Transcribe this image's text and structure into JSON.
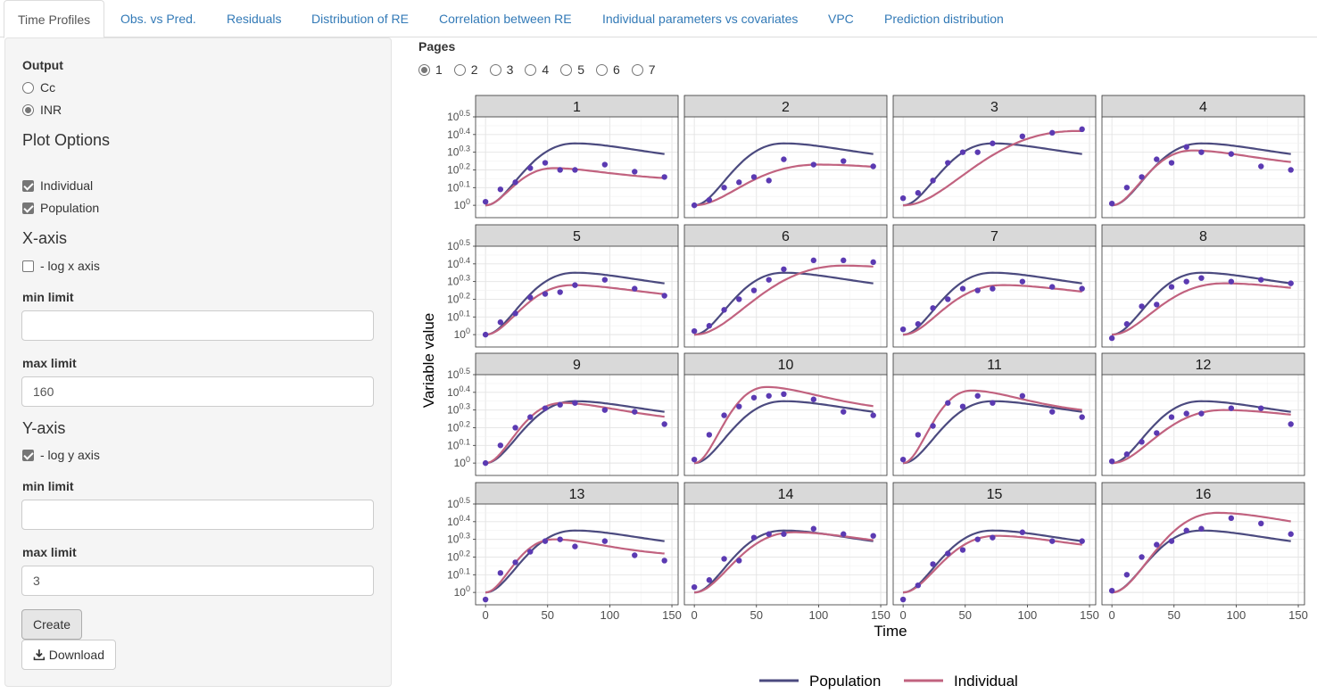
{
  "tabs": [
    {
      "label": "Time Profiles",
      "active": true
    },
    {
      "label": "Obs. vs Pred.",
      "active": false
    },
    {
      "label": "Residuals",
      "active": false
    },
    {
      "label": "Distribution of RE",
      "active": false
    },
    {
      "label": "Correlation between RE",
      "active": false
    },
    {
      "label": "Individual parameters vs covariates",
      "active": false
    },
    {
      "label": "VPC",
      "active": false
    },
    {
      "label": "Prediction distribution",
      "active": false
    }
  ],
  "sidebar": {
    "output_label": "Output",
    "output_options": [
      {
        "label": "Cc",
        "checked": false
      },
      {
        "label": "INR",
        "checked": true
      }
    ],
    "plot_options_label": "Plot Options",
    "plot_checks": [
      {
        "label": "Individual",
        "checked": true
      },
      {
        "label": "Population",
        "checked": true
      }
    ],
    "xaxis_label": "X-axis",
    "xaxis_log_label": "- log x axis",
    "xaxis_log_checked": false,
    "x_min_label": "min limit",
    "x_min_value": "",
    "x_max_label": "max limit",
    "x_max_value": "160",
    "yaxis_label": "Y-axis",
    "yaxis_log_label": "- log y axis",
    "yaxis_log_checked": true,
    "y_min_label": "min limit",
    "y_min_value": "",
    "y_max_label": "max limit",
    "y_max_value": "3",
    "create_label": "Create",
    "download_label": "Download"
  },
  "pages": {
    "label": "Pages",
    "options": [
      "1",
      "2",
      "3",
      "4",
      "5",
      "6",
      "7"
    ],
    "selected": "1"
  },
  "colors": {
    "population": "#4b4a7f",
    "individual": "#c1627f",
    "observation": "#5b3ab2",
    "strip": "#d9d9d9"
  },
  "chart_data": {
    "type": "line",
    "xlabel": "Time",
    "ylabel": "Variable value",
    "xlim": [
      -8,
      155
    ],
    "x_ticks": [
      "0",
      "50",
      "100",
      "150"
    ],
    "x_tick_values": [
      0,
      50,
      100,
      150
    ],
    "y_scale": "log10",
    "ylim_exponent": [
      -0.07,
      0.5
    ],
    "y_tick_base": "10",
    "y_tick_exponents": [
      "0",
      "0.1",
      "0.2",
      "0.3",
      "0.4",
      "0.5"
    ],
    "y_tick_exponent_values": [
      0,
      0.1,
      0.2,
      0.3,
      0.4,
      0.5
    ],
    "legend": {
      "placement": "bottom",
      "entries": [
        "Population",
        "Individual"
      ]
    },
    "obs_times": [
      0,
      12,
      24,
      36,
      48,
      60,
      72,
      96,
      120,
      144
    ],
    "panels": [
      {
        "id": "1",
        "pop": [
          0,
          0.35,
          72
        ],
        "ind": [
          0,
          0.21,
          55
        ],
        "obs": [
          0.02,
          0.09,
          0.13,
          0.21,
          0.24,
          0.2,
          0.2,
          0.23,
          0.19,
          0.16
        ]
      },
      {
        "id": "2",
        "pop": [
          0,
          0.35,
          72
        ],
        "ind": [
          0,
          0.23,
          100
        ],
        "obs": [
          0,
          0.03,
          0.1,
          0.13,
          0.16,
          0.14,
          0.26,
          0.23,
          0.25,
          0.22
        ]
      },
      {
        "id": "3",
        "pop": [
          0,
          0.35,
          72
        ],
        "ind": [
          0,
          0.42,
          140
        ],
        "obs": [
          0.04,
          0.07,
          0.14,
          0.24,
          0.3,
          0.3,
          0.35,
          0.39,
          0.41,
          0.43
        ]
      },
      {
        "id": "4",
        "pop": [
          0,
          0.35,
          72
        ],
        "ind": [
          0,
          0.31,
          65
        ],
        "obs": [
          0.01,
          0.1,
          0.16,
          0.26,
          0.24,
          0.33,
          0.3,
          0.29,
          0.22,
          0.2
        ]
      },
      {
        "id": "5",
        "pop": [
          0,
          0.35,
          72
        ],
        "ind": [
          0,
          0.28,
          70
        ],
        "obs": [
          0,
          0.07,
          0.12,
          0.21,
          0.23,
          0.24,
          0.28,
          0.31,
          0.26,
          0.22
        ]
      },
      {
        "id": "6",
        "pop": [
          0,
          0.35,
          72
        ],
        "ind": [
          0,
          0.39,
          120
        ],
        "obs": [
          0.02,
          0.05,
          0.14,
          0.2,
          0.25,
          0.31,
          0.37,
          0.42,
          0.42,
          0.41
        ]
      },
      {
        "id": "7",
        "pop": [
          0,
          0.35,
          72
        ],
        "ind": [
          0,
          0.28,
          80
        ],
        "obs": [
          0.03,
          0.06,
          0.15,
          0.2,
          0.26,
          0.25,
          0.26,
          0.3,
          0.27,
          0.26
        ]
      },
      {
        "id": "8",
        "pop": [
          0,
          0.35,
          72
        ],
        "ind": [
          0,
          0.29,
          90
        ],
        "obs": [
          -0.02,
          0.06,
          0.16,
          0.17,
          0.27,
          0.3,
          0.32,
          0.3,
          0.31,
          0.29
        ]
      },
      {
        "id": "9",
        "pop": [
          0,
          0.35,
          72
        ],
        "ind": [
          0,
          0.34,
          62
        ],
        "obs": [
          0,
          0.1,
          0.2,
          0.26,
          0.31,
          0.33,
          0.34,
          0.3,
          0.29,
          0.22
        ]
      },
      {
        "id": "10",
        "pop": [
          0,
          0.35,
          72
        ],
        "ind": [
          0,
          0.43,
          58
        ],
        "obs": [
          0.02,
          0.16,
          0.27,
          0.32,
          0.37,
          0.38,
          0.39,
          0.36,
          0.29,
          0.27
        ]
      },
      {
        "id": "11",
        "pop": [
          0,
          0.35,
          72
        ],
        "ind": [
          0,
          0.41,
          55
        ],
        "obs": [
          0.02,
          0.16,
          0.21,
          0.34,
          0.32,
          0.38,
          0.34,
          0.38,
          0.29,
          0.26
        ]
      },
      {
        "id": "12",
        "pop": [
          0,
          0.35,
          72
        ],
        "ind": [
          0,
          0.3,
          90
        ],
        "obs": [
          0.01,
          0.05,
          0.12,
          0.17,
          0.26,
          0.28,
          0.28,
          0.31,
          0.31,
          0.22
        ]
      },
      {
        "id": "13",
        "pop": [
          0,
          0.35,
          72
        ],
        "ind": [
          0,
          0.3,
          55
        ],
        "obs": [
          -0.04,
          0.11,
          0.17,
          0.23,
          0.29,
          0.3,
          0.26,
          0.29,
          0.21,
          0.18
        ]
      },
      {
        "id": "14",
        "pop": [
          0,
          0.35,
          72
        ],
        "ind": [
          0,
          0.34,
          80
        ],
        "obs": [
          0.03,
          0.07,
          0.19,
          0.18,
          0.31,
          0.33,
          0.33,
          0.36,
          0.33,
          0.32
        ]
      },
      {
        "id": "15",
        "pop": [
          0,
          0.35,
          72
        ],
        "ind": [
          0,
          0.32,
          75
        ],
        "obs": [
          -0.04,
          0.04,
          0.16,
          0.22,
          0.24,
          0.3,
          0.31,
          0.34,
          0.29,
          0.29
        ]
      },
      {
        "id": "16",
        "pop": [
          0,
          0.35,
          72
        ],
        "ind": [
          0,
          0.45,
          85
        ],
        "obs": [
          0.01,
          0.1,
          0.2,
          0.27,
          0.29,
          0.35,
          0.36,
          0.42,
          0.39,
          0.33
        ]
      }
    ]
  }
}
